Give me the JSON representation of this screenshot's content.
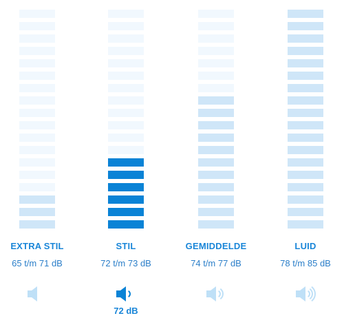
{
  "colors": {
    "strong": "#0a83d6",
    "medium": "#cfe6f8",
    "light": "#eaf4fc",
    "faint": "#f1f8fe",
    "label": "#1a86d8",
    "speaker_active": "#0a83d6",
    "speaker_inactive": "#bfe0f7"
  },
  "bars_per_meter": 18,
  "categories": [
    {
      "title": "EXTRA STIL",
      "range": "65 t/m 71 dB",
      "bars": [
        "faint",
        "faint",
        "faint",
        "faint",
        "faint",
        "faint",
        "faint",
        "faint",
        "faint",
        "faint",
        "faint",
        "faint",
        "faint",
        "faint",
        "faint",
        "medium",
        "medium",
        "medium"
      ],
      "speaker_icon": "speaker-icon",
      "speaker_waves": 0,
      "active": false,
      "level": ""
    },
    {
      "title": "STIL",
      "range": "72 t/m 73 dB",
      "bars": [
        "faint",
        "faint",
        "faint",
        "faint",
        "faint",
        "faint",
        "faint",
        "faint",
        "faint",
        "faint",
        "faint",
        "faint",
        "strong",
        "strong",
        "strong",
        "strong",
        "strong",
        "strong"
      ],
      "speaker_icon": "speaker-icon",
      "speaker_waves": 1,
      "active": true,
      "level": "72 dB"
    },
    {
      "title": "GEMIDDELDE",
      "range": "74 t/m 77 dB",
      "bars": [
        "faint",
        "faint",
        "faint",
        "faint",
        "faint",
        "faint",
        "faint",
        "medium",
        "medium",
        "medium",
        "medium",
        "medium",
        "medium",
        "medium",
        "medium",
        "medium",
        "medium",
        "medium"
      ],
      "speaker_icon": "speaker-icon",
      "speaker_waves": 2,
      "active": false,
      "level": ""
    },
    {
      "title": "LUID",
      "range": "78 t/m 85 dB",
      "bars": [
        "medium",
        "medium",
        "medium",
        "medium",
        "medium",
        "medium",
        "medium",
        "medium",
        "medium",
        "medium",
        "medium",
        "medium",
        "medium",
        "medium",
        "medium",
        "medium",
        "medium",
        "medium"
      ],
      "speaker_icon": "speaker-icon",
      "speaker_waves": 3,
      "active": false,
      "level": ""
    }
  ]
}
